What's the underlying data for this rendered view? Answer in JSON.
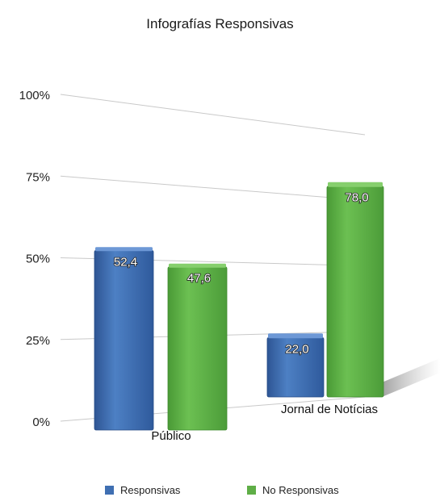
{
  "chart_data": {
    "type": "bar",
    "title": "Infografías Responsivas",
    "categories": [
      "Público",
      "Jornal de Notícias"
    ],
    "series": [
      {
        "name": "Responsivas",
        "values": [
          52.4,
          22.0
        ],
        "labels": [
          "52,4",
          "22,0"
        ],
        "color": "#3f6fb2"
      },
      {
        "name": "No Responsivas",
        "values": [
          47.6,
          78.0
        ],
        "labels": [
          "47,6",
          "78,0"
        ],
        "color": "#5fae47"
      }
    ],
    "y_ticks": [
      0,
      25,
      50,
      75,
      100
    ],
    "y_tick_labels": [
      "0%",
      "25%",
      "50%",
      "75%",
      "100%"
    ],
    "ylim": [
      0,
      100
    ],
    "grid": true,
    "legend_position": "bottom",
    "xlabel": "",
    "ylabel": ""
  }
}
